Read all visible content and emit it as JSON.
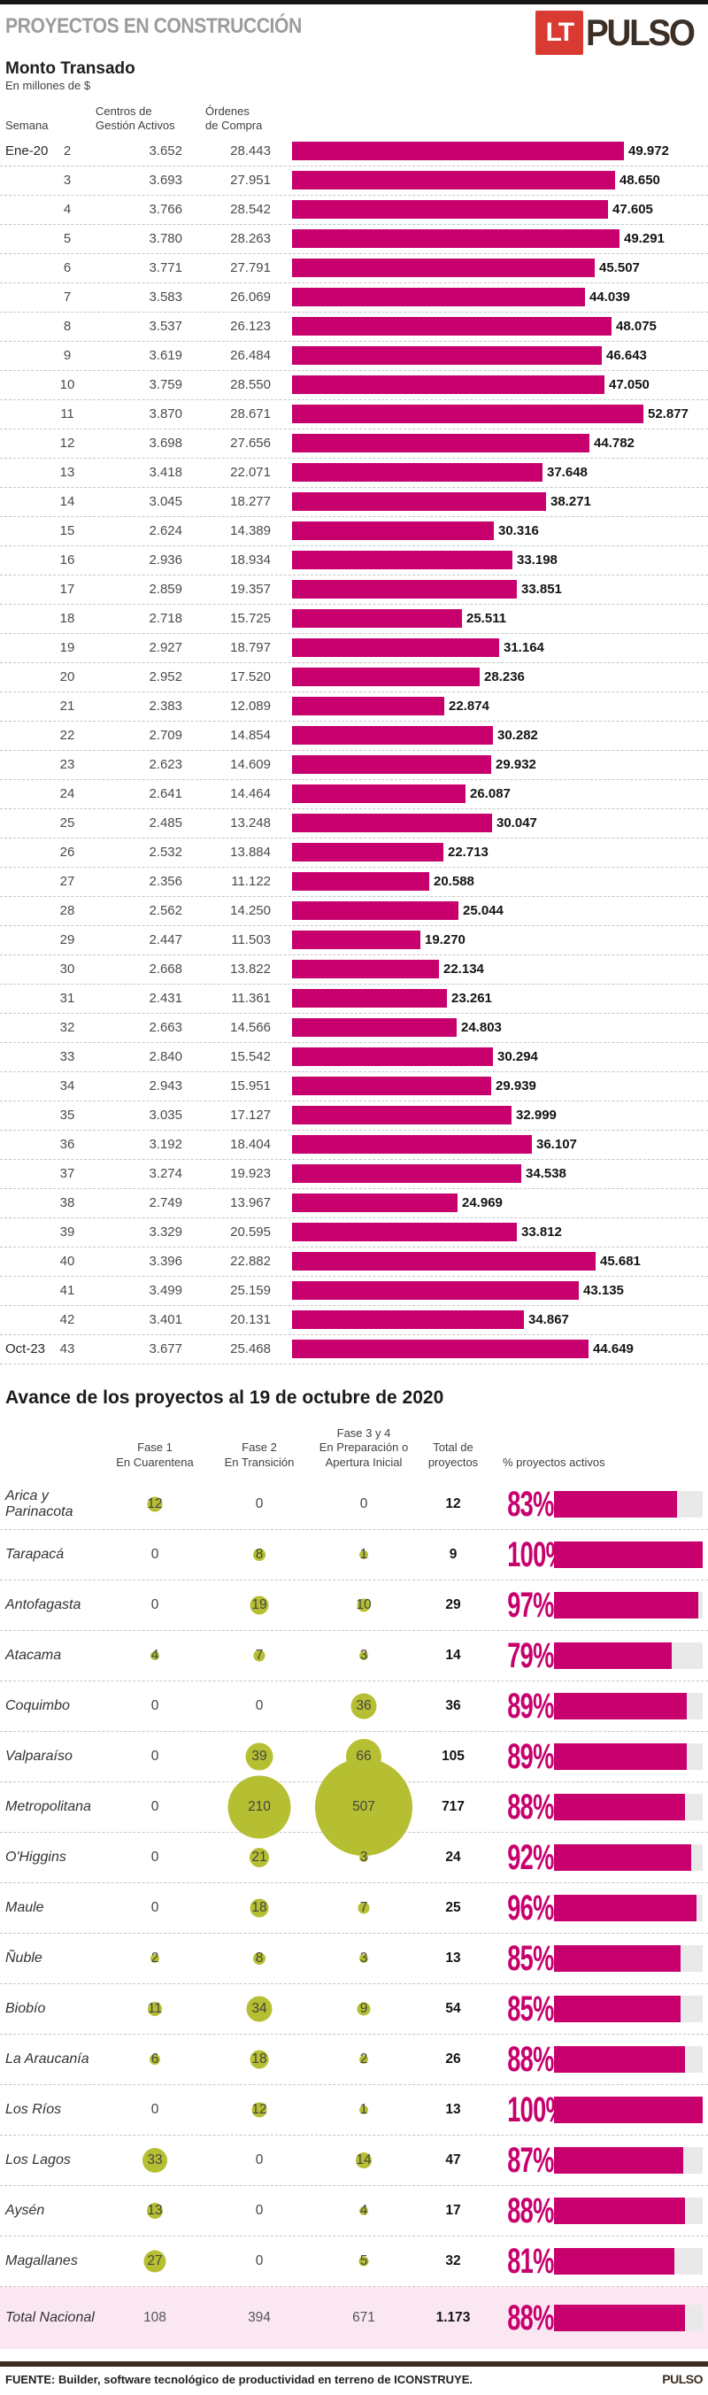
{
  "colors": {
    "accent": "#c8006e",
    "bubble": "#b5bf31",
    "track_gray": "#e9e9e9",
    "logo_red": "#d93a32",
    "dark_brown": "#3b2d22",
    "total_row_bg": "#fbe7f2",
    "title_gray": "#9c9c9c"
  },
  "header": {
    "title": "PROYECTOS EN CONSTRUCCIÓN",
    "logo_lt": "LT",
    "logo_pulso": "PULSO"
  },
  "chart_data": [
    {
      "type": "bar",
      "title": "Monto Transado",
      "subtitle": "En millones de $",
      "columns": {
        "semana": "Semana",
        "centros": "Centros de\nGestión Activos",
        "ordenes": "Órdenes\nde Compra"
      },
      "xlim": [
        0,
        52877
      ],
      "rows": [
        {
          "month": "Ene-20",
          "week": "2",
          "centros": "3.652",
          "ordenes": "28.443",
          "label": "49.972",
          "value": 49972
        },
        {
          "month": "",
          "week": "3",
          "centros": "3.693",
          "ordenes": "27.951",
          "label": "48.650",
          "value": 48650
        },
        {
          "month": "",
          "week": "4",
          "centros": "3.766",
          "ordenes": "28.542",
          "label": "47.605",
          "value": 47605
        },
        {
          "month": "",
          "week": "5",
          "centros": "3.780",
          "ordenes": "28.263",
          "label": "49.291",
          "value": 49291
        },
        {
          "month": "",
          "week": "6",
          "centros": "3.771",
          "ordenes": "27.791",
          "label": "45.507",
          "value": 45507
        },
        {
          "month": "",
          "week": "7",
          "centros": "3.583",
          "ordenes": "26.069",
          "label": "44.039",
          "value": 44039
        },
        {
          "month": "",
          "week": "8",
          "centros": "3.537",
          "ordenes": "26.123",
          "label": "48.075",
          "value": 48075
        },
        {
          "month": "",
          "week": "9",
          "centros": "3.619",
          "ordenes": "26.484",
          "label": "46.643",
          "value": 46643
        },
        {
          "month": "",
          "week": "10",
          "centros": "3.759",
          "ordenes": "28.550",
          "label": "47.050",
          "value": 47050
        },
        {
          "month": "",
          "week": "11",
          "centros": "3.870",
          "ordenes": "28.671",
          "label": "52.877",
          "value": 52877
        },
        {
          "month": "",
          "week": "12",
          "centros": "3.698",
          "ordenes": "27.656",
          "label": "44.782",
          "value": 44782
        },
        {
          "month": "",
          "week": "13",
          "centros": "3.418",
          "ordenes": "22.071",
          "label": "37.648",
          "value": 37648
        },
        {
          "month": "",
          "week": "14",
          "centros": "3.045",
          "ordenes": "18.277",
          "label": "38.271",
          "value": 38271
        },
        {
          "month": "",
          "week": "15",
          "centros": "2.624",
          "ordenes": "14.389",
          "label": "30.316",
          "value": 30316
        },
        {
          "month": "",
          "week": "16",
          "centros": "2.936",
          "ordenes": "18.934",
          "label": "33.198",
          "value": 33198
        },
        {
          "month": "",
          "week": "17",
          "centros": "2.859",
          "ordenes": "19.357",
          "label": "33.851",
          "value": 33851
        },
        {
          "month": "",
          "week": "18",
          "centros": "2.718",
          "ordenes": "15.725",
          "label": "25.511",
          "value": 25511
        },
        {
          "month": "",
          "week": "19",
          "centros": "2.927",
          "ordenes": "18.797",
          "label": "31.164",
          "value": 31164
        },
        {
          "month": "",
          "week": "20",
          "centros": "2.952",
          "ordenes": "17.520",
          "label": "28.236",
          "value": 28236
        },
        {
          "month": "",
          "week": "21",
          "centros": "2.383",
          "ordenes": "12.089",
          "label": "22.874",
          "value": 22874
        },
        {
          "month": "",
          "week": "22",
          "centros": "2.709",
          "ordenes": "14.854",
          "label": "30.282",
          "value": 30282
        },
        {
          "month": "",
          "week": "23",
          "centros": "2.623",
          "ordenes": "14.609",
          "label": "29.932",
          "value": 29932
        },
        {
          "month": "",
          "week": "24",
          "centros": "2.641",
          "ordenes": "14.464",
          "label": "26.087",
          "value": 26087
        },
        {
          "month": "",
          "week": "25",
          "centros": "2.485",
          "ordenes": "13.248",
          "label": "30.047",
          "value": 30047
        },
        {
          "month": "",
          "week": "26",
          "centros": "2.532",
          "ordenes": "13.884",
          "label": "22.713",
          "value": 22713
        },
        {
          "month": "",
          "week": "27",
          "centros": "2.356",
          "ordenes": "11.122",
          "label": "20.588",
          "value": 20588
        },
        {
          "month": "",
          "week": "28",
          "centros": "2.562",
          "ordenes": "14.250",
          "label": "25.044",
          "value": 25044
        },
        {
          "month": "",
          "week": "29",
          "centros": "2.447",
          "ordenes": "11.503",
          "label": "19.270",
          "value": 19270
        },
        {
          "month": "",
          "week": "30",
          "centros": "2.668",
          "ordenes": "13.822",
          "label": "22.134",
          "value": 22134
        },
        {
          "month": "",
          "week": "31",
          "centros": "2.431",
          "ordenes": "11.361",
          "label": "23.261",
          "value": 23261
        },
        {
          "month": "",
          "week": "32",
          "centros": "2.663",
          "ordenes": "14.566",
          "label": "24.803",
          "value": 24803
        },
        {
          "month": "",
          "week": "33",
          "centros": "2.840",
          "ordenes": "15.542",
          "label": "30.294",
          "value": 30294
        },
        {
          "month": "",
          "week": "34",
          "centros": "2.943",
          "ordenes": "15.951",
          "label": "29.939",
          "value": 29939
        },
        {
          "month": "",
          "week": "35",
          "centros": "3.035",
          "ordenes": "17.127",
          "label": "32.999",
          "value": 32999
        },
        {
          "month": "",
          "week": "36",
          "centros": "3.192",
          "ordenes": "18.404",
          "label": "36.107",
          "value": 36107
        },
        {
          "month": "",
          "week": "37",
          "centros": "3.274",
          "ordenes": "19.923",
          "label": "34.538",
          "value": 34538
        },
        {
          "month": "",
          "week": "38",
          "centros": "2.749",
          "ordenes": "13.967",
          "label": "24.969",
          "value": 24969
        },
        {
          "month": "",
          "week": "39",
          "centros": "3.329",
          "ordenes": "20.595",
          "label": "33.812",
          "value": 33812
        },
        {
          "month": "",
          "week": "40",
          "centros": "3.396",
          "ordenes": "22.882",
          "label": "45.681",
          "value": 45681
        },
        {
          "month": "",
          "week": "41",
          "centros": "3.499",
          "ordenes": "25.159",
          "label": "43.135",
          "value": 43135
        },
        {
          "month": "",
          "week": "42",
          "centros": "3.401",
          "ordenes": "20.131",
          "label": "34.867",
          "value": 34867
        },
        {
          "month": "Oct-23",
          "week": "43",
          "centros": "3.677",
          "ordenes": "25.468",
          "label": "44.649",
          "value": 44649
        }
      ]
    },
    {
      "type": "table",
      "title": "Avance de los proyectos al 19 de octubre de 2020",
      "columns": {
        "fase1": "Fase 1\nEn Cuarentena",
        "fase2": "Fase 2\nEn Transición",
        "fase3": "Fase 3 y 4\nEn Preparación o\nApertura Inicial",
        "total": "Total de\nproyectos",
        "pct": "% proyectos activos"
      },
      "rows": [
        {
          "region": "Arica y Parinacota",
          "fase1": 12,
          "fase2": 0,
          "fase3": 0,
          "total": "12",
          "pct": 83
        },
        {
          "region": "Tarapacá",
          "fase1": 0,
          "fase2": 8,
          "fase3": 1,
          "total": "9",
          "pct": 100
        },
        {
          "region": "Antofagasta",
          "fase1": 0,
          "fase2": 19,
          "fase3": 10,
          "total": "29",
          "pct": 97
        },
        {
          "region": "Atacama",
          "fase1": 4,
          "fase2": 7,
          "fase3": 3,
          "total": "14",
          "pct": 79
        },
        {
          "region": "Coquimbo",
          "fase1": 0,
          "fase2": 0,
          "fase3": 36,
          "total": "36",
          "pct": 89
        },
        {
          "region": "Valparaíso",
          "fase1": 0,
          "fase2": 39,
          "fase3": 66,
          "total": "105",
          "pct": 89
        },
        {
          "region": "Metropolitana",
          "fase1": 0,
          "fase2": 210,
          "fase3": 507,
          "total": "717",
          "pct": 88
        },
        {
          "region": "O'Higgins",
          "fase1": 0,
          "fase2": 21,
          "fase3": 3,
          "total": "24",
          "pct": 92
        },
        {
          "region": "Maule",
          "fase1": 0,
          "fase2": 18,
          "fase3": 7,
          "total": "25",
          "pct": 96
        },
        {
          "region": "Ñuble",
          "fase1": 2,
          "fase2": 8,
          "fase3": 3,
          "total": "13",
          "pct": 85
        },
        {
          "region": "Biobío",
          "fase1": 11,
          "fase2": 34,
          "fase3": 9,
          "total": "54",
          "pct": 85
        },
        {
          "region": "La Araucanía",
          "fase1": 6,
          "fase2": 18,
          "fase3": 2,
          "total": "26",
          "pct": 88
        },
        {
          "region": "Los Ríos",
          "fase1": 0,
          "fase2": 12,
          "fase3": 1,
          "total": "13",
          "pct": 100
        },
        {
          "region": "Los Lagos",
          "fase1": 33,
          "fase2": 0,
          "fase3": 14,
          "total": "47",
          "pct": 87
        },
        {
          "region": "Aysén",
          "fase1": 13,
          "fase2": 0,
          "fase3": 4,
          "total": "17",
          "pct": 88
        },
        {
          "region": "Magallanes",
          "fase1": 27,
          "fase2": 0,
          "fase3": 5,
          "total": "32",
          "pct": 81
        }
      ],
      "total_row": {
        "region": "Total Nacional",
        "fase1": "108",
        "fase2": "394",
        "fase3": "671",
        "total": "1.173",
        "pct": 88,
        "pct_label": "88%"
      }
    }
  ],
  "footer": {
    "source": "FUENTE: Builder, software tecnológico de productividad en terreno de ICONSTRUYE.",
    "brand": "PULSO"
  }
}
